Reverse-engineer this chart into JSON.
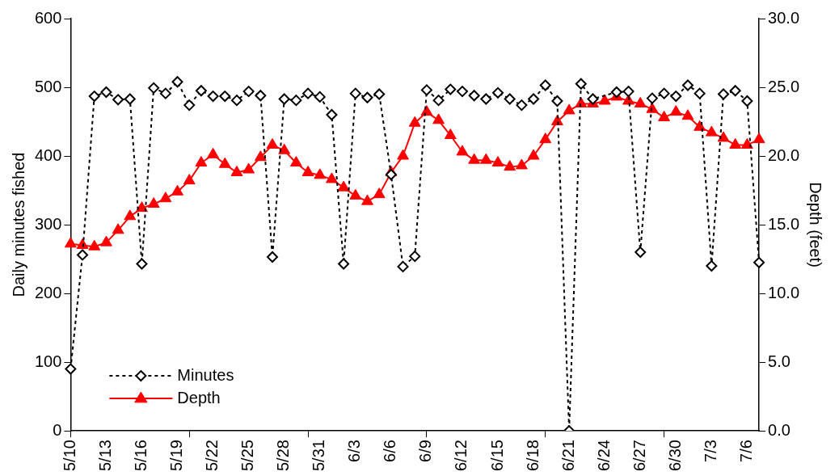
{
  "chart_data": {
    "type": "line",
    "xlabel": null,
    "ylabel": "Daily minutes fished",
    "y2label": "Depth (feet)",
    "categories": [
      "5/10",
      null,
      null,
      "5/13",
      null,
      null,
      "5/16",
      null,
      null,
      "5/19",
      null,
      null,
      "5/22",
      null,
      null,
      "5/25",
      null,
      null,
      "5/28",
      null,
      null,
      "5/31",
      null,
      null,
      "6/3",
      null,
      null,
      "6/6",
      null,
      null,
      "6/9",
      null,
      null,
      "6/12",
      null,
      null,
      "6/15",
      null,
      null,
      "6/18",
      null,
      null,
      "6/21",
      null,
      null,
      "6/24",
      null,
      null,
      "6/27",
      null,
      null,
      "6/30",
      null,
      null,
      "7/3",
      null,
      null,
      "7/6",
      null
    ],
    "series": [
      {
        "name": "Minutes",
        "color": "#000000",
        "marker": "diamond",
        "line_style": "dotted",
        "values": [
          90,
          256,
          487,
          493,
          482,
          483,
          243,
          499,
          491,
          508,
          474,
          495,
          487,
          487,
          481,
          494,
          488,
          253,
          483,
          481,
          491,
          486,
          460,
          243,
          491,
          485,
          490,
          373,
          239,
          254,
          496,
          481,
          497,
          494,
          488,
          483,
          492,
          483,
          474,
          483,
          503,
          480,
          0,
          505,
          483,
          null,
          493,
          494,
          260,
          484,
          491,
          487,
          503,
          491,
          240,
          490,
          495,
          480,
          245
        ]
      },
      {
        "name": "Depth",
        "color": "#ff0000",
        "marker": "triangle",
        "line_style": "solid",
        "axis": "y2",
        "values": [
          13.6,
          13.5,
          13.4,
          13.7,
          14.6,
          15.6,
          16.2,
          16.5,
          16.9,
          17.4,
          18.2,
          19.5,
          20.1,
          19.4,
          18.8,
          19.0,
          19.9,
          20.8,
          20.4,
          19.5,
          18.8,
          18.6,
          18.3,
          17.7,
          17.1,
          16.7,
          17.2,
          18.8,
          20.0,
          22.4,
          23.2,
          22.6,
          21.5,
          20.3,
          19.7,
          19.7,
          19.5,
          19.2,
          19.3,
          20.0,
          21.2,
          22.5,
          23.3,
          23.8,
          23.8,
          24.0,
          24.3,
          24.0,
          23.8,
          23.4,
          22.8,
          23.2,
          22.9,
          22.1,
          21.7,
          21.3,
          20.8,
          20.8,
          21.2
        ]
      }
    ],
    "ylim": [
      0,
      600
    ],
    "yticks": [
      0,
      100,
      200,
      300,
      400,
      500,
      600
    ],
    "y2lim": [
      0,
      30
    ],
    "y2ticks": [
      {
        "value": 0,
        "label": "0.0"
      },
      {
        "value": 5,
        "label": "5.0"
      },
      {
        "value": 10,
        "label": "10.0"
      },
      {
        "value": 15,
        "label": "15.0"
      },
      {
        "value": 20,
        "label": "20.0"
      },
      {
        "value": 25,
        "label": "25.0"
      },
      {
        "value": 30,
        "label": "30.0"
      }
    ],
    "grid": false,
    "legend": "bottom left"
  }
}
